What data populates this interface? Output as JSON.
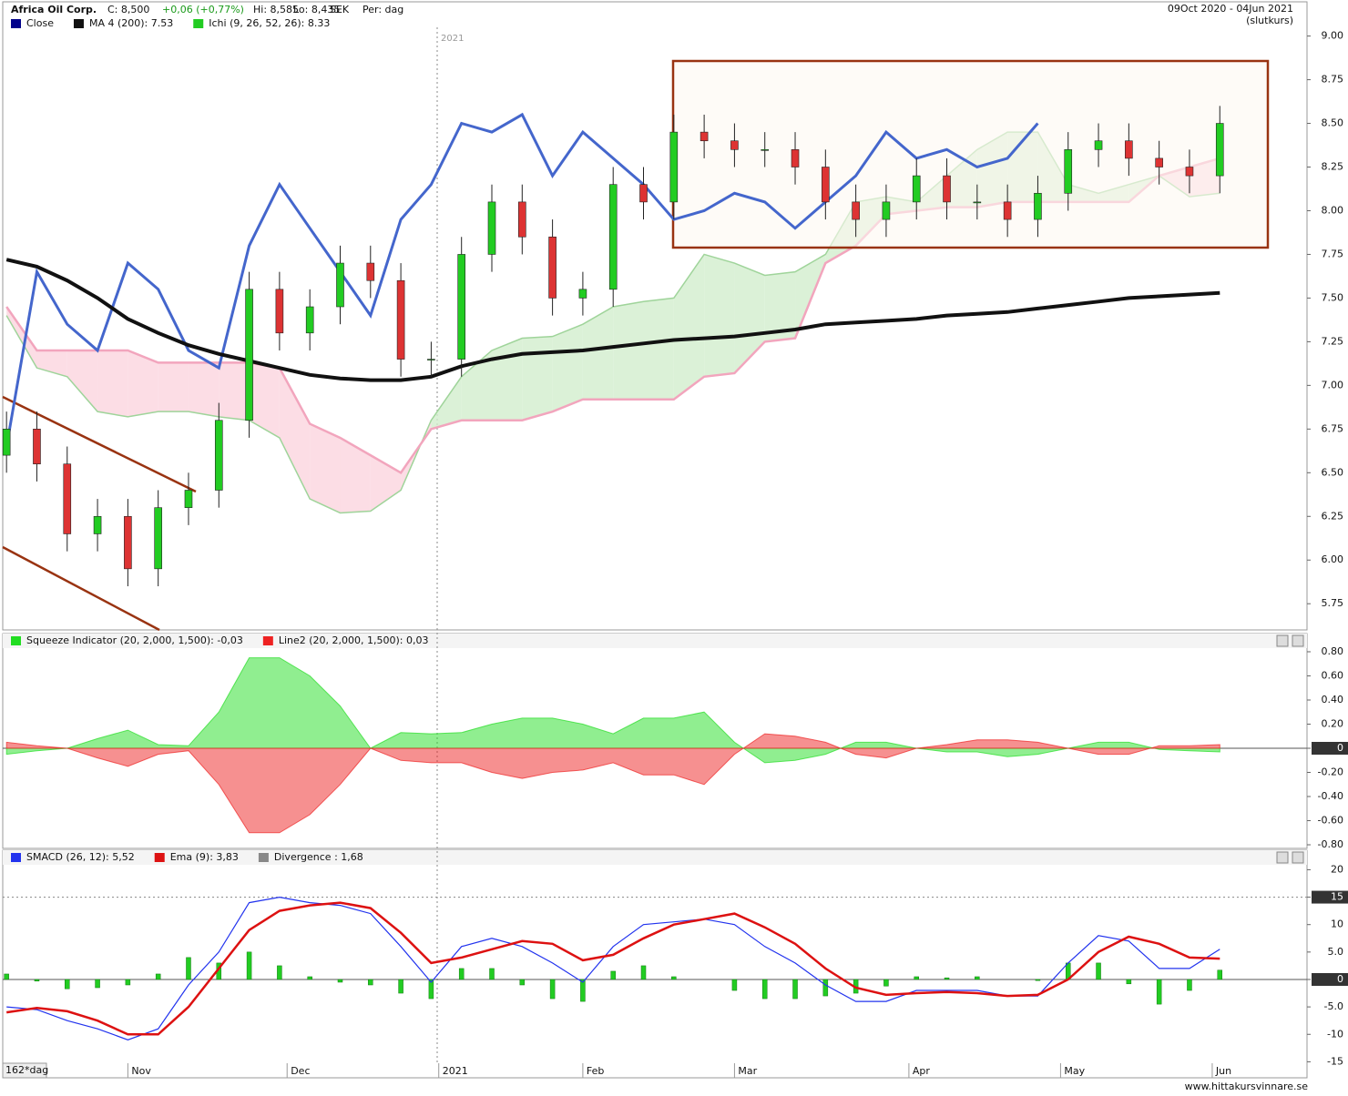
{
  "header": {
    "title": "Africa Oil Corp.",
    "close": "C: 8,500",
    "change": "+0,06 (+0,77%)",
    "high": "Hi: 8,585",
    "low": "Lo: 8,435",
    "currency": "SEK",
    "period": "Per: dag",
    "range": "09Oct 2020 - 04Jun 2021",
    "note": "(slutkurs)",
    "year_marker": "2021",
    "days": "162*dag",
    "footer": "www.hittakursvinnare.se"
  },
  "chart_data": [
    {
      "type": "candlestick",
      "up_color": "#22cc22",
      "down_color": "#dd3333",
      "cloud_colors": [
        "#d2eecd",
        "#fbd5df"
      ],
      "x": [
        0,
        4,
        8,
        12,
        16,
        20,
        24,
        28,
        32,
        36,
        40,
        44,
        48,
        52,
        56,
        60,
        64,
        68,
        72,
        76,
        80,
        84,
        88,
        92,
        96,
        100,
        104,
        108,
        112,
        116,
        120,
        124,
        128,
        132,
        136,
        140,
        144,
        148,
        152,
        156,
        160
      ],
      "xlim": [
        -0.5,
        171.5
      ],
      "open": [
        6.6,
        6.75,
        6.55,
        6.15,
        6.25,
        5.95,
        6.3,
        6.4,
        6.8,
        7.55,
        7.3,
        7.45,
        7.7,
        7.6,
        7.15,
        7.15,
        7.75,
        8.05,
        7.85,
        7.5,
        7.55,
        8.15,
        8.05,
        8.45,
        8.4,
        8.35,
        8.35,
        8.25,
        8.05,
        7.95,
        8.05,
        8.2,
        8.05,
        8.05,
        7.95,
        8.1,
        8.35,
        8.4,
        8.3,
        8.25,
        8.2
      ],
      "high": [
        6.85,
        6.85,
        6.65,
        6.35,
        6.35,
        6.4,
        6.5,
        6.9,
        7.65,
        7.65,
        7.55,
        7.8,
        7.8,
        7.7,
        7.25,
        7.85,
        8.15,
        8.15,
        7.95,
        7.65,
        8.25,
        8.25,
        8.55,
        8.55,
        8.5,
        8.45,
        8.45,
        8.35,
        8.15,
        8.15,
        8.3,
        8.3,
        8.15,
        8.15,
        8.2,
        8.45,
        8.5,
        8.5,
        8.4,
        8.35,
        8.6
      ],
      "low": [
        6.5,
        6.45,
        6.05,
        6.05,
        5.85,
        5.85,
        6.2,
        6.3,
        6.7,
        7.2,
        7.2,
        7.35,
        7.5,
        7.05,
        7.05,
        7.05,
        7.65,
        7.75,
        7.4,
        7.4,
        7.45,
        7.95,
        7.95,
        8.3,
        8.25,
        8.25,
        8.15,
        7.95,
        7.85,
        7.85,
        7.95,
        7.95,
        7.95,
        7.85,
        7.85,
        8.0,
        8.25,
        8.2,
        8.15,
        8.1,
        8.1
      ],
      "close": [
        6.75,
        6.55,
        6.15,
        6.25,
        5.95,
        6.3,
        6.4,
        6.8,
        7.55,
        7.3,
        7.45,
        7.7,
        7.6,
        7.15,
        7.15,
        7.75,
        8.05,
        7.85,
        7.5,
        7.55,
        8.15,
        8.05,
        8.45,
        8.4,
        8.35,
        8.35,
        8.25,
        8.05,
        7.95,
        8.05,
        8.2,
        8.05,
        8.05,
        7.95,
        8.1,
        8.35,
        8.4,
        8.3,
        8.25,
        8.2,
        8.5
      ],
      "series": [
        {
          "name": "Close",
          "color": "#4466cc",
          "legend_color": "#00008b",
          "values": [
            6.65,
            7.65,
            7.35,
            7.2,
            7.7,
            7.55,
            7.2,
            7.1,
            7.8,
            8.15,
            7.9,
            7.65,
            7.4,
            7.95,
            8.15,
            8.5,
            8.45,
            8.55,
            8.2,
            8.45,
            8.3,
            8.15,
            7.95,
            8.0,
            8.1,
            8.05,
            7.9,
            8.05,
            8.2,
            8.45,
            8.3,
            8.35,
            8.25,
            8.3,
            8.5,
            null,
            null,
            null,
            null,
            null,
            null
          ]
        },
        {
          "name": "MA 4 (200): 7.53",
          "color": "#111111",
          "values": [
            7.72,
            7.68,
            7.6,
            7.5,
            7.38,
            7.3,
            7.23,
            7.18,
            7.14,
            7.1,
            7.06,
            7.04,
            7.03,
            7.03,
            7.05,
            7.11,
            7.15,
            7.18,
            7.19,
            7.2,
            7.22,
            7.24,
            7.26,
            7.27,
            7.28,
            7.3,
            7.32,
            7.35,
            7.36,
            7.37,
            7.38,
            7.4,
            7.41,
            7.42,
            7.44,
            7.46,
            7.48,
            7.5,
            7.51,
            7.52,
            7.53
          ]
        },
        {
          "name": "Ichi (9, 26, 52, 26): 8.33",
          "color": "#22cc22",
          "span_a": [
            7.4,
            7.1,
            7.05,
            6.85,
            6.82,
            6.85,
            6.85,
            6.82,
            6.8,
            6.7,
            6.35,
            6.27,
            6.28,
            6.4,
            6.8,
            7.05,
            7.2,
            7.27,
            7.28,
            7.35,
            7.45,
            7.48,
            7.5,
            7.75,
            7.7,
            7.63,
            7.65,
            7.75,
            8.05,
            8.08,
            8.05,
            8.2,
            8.35,
            8.45,
            8.45,
            8.15,
            8.1,
            8.15,
            8.2,
            8.08,
            8.1
          ],
          "span_b": [
            7.45,
            7.2,
            7.2,
            7.2,
            7.2,
            7.13,
            7.13,
            7.13,
            7.13,
            7.1,
            6.78,
            6.7,
            6.6,
            6.5,
            6.75,
            6.8,
            6.8,
            6.8,
            6.85,
            6.92,
            6.92,
            6.92,
            6.92,
            7.05,
            7.07,
            7.25,
            7.27,
            7.7,
            7.8,
            7.98,
            8.0,
            8.02,
            8.02,
            8.05,
            8.05,
            8.05,
            8.05,
            8.05,
            8.2,
            8.25,
            8.3
          ]
        }
      ],
      "ylim": [
        5.6,
        9.05
      ],
      "yticks": [
        {
          "value": 9,
          "label": "9.00"
        },
        {
          "value": 8.75,
          "label": "8.75"
        },
        {
          "value": 8.5,
          "label": "8.50"
        },
        {
          "value": 8.25,
          "label": "8.25"
        },
        {
          "value": 8,
          "label": "8.00"
        },
        {
          "value": 7.75,
          "label": "7.75"
        },
        {
          "value": 7.5,
          "label": "7.50"
        },
        {
          "value": 7.25,
          "label": "7.25"
        },
        {
          "value": 7,
          "label": "7.00"
        },
        {
          "value": 6.75,
          "label": "6.75"
        },
        {
          "value": 6.5,
          "label": "6.50"
        },
        {
          "value": 6.25,
          "label": "6.25"
        },
        {
          "value": 6,
          "label": "6.00"
        },
        {
          "value": 5.75,
          "label": "5.75"
        }
      ]
    },
    {
      "type": "area",
      "x": [
        0,
        4,
        8,
        12,
        16,
        20,
        24,
        28,
        32,
        36,
        40,
        44,
        48,
        52,
        56,
        60,
        64,
        68,
        72,
        76,
        80,
        84,
        88,
        92,
        96,
        100,
        104,
        108,
        112,
        116,
        120,
        124,
        128,
        132,
        136,
        140,
        144,
        148,
        152,
        156,
        160
      ],
      "xlim": [
        -0.5,
        171.5
      ],
      "series": [
        {
          "name": "Squeeze Indicator (20, 2,000, 1,500): -0,03",
          "color": "#22dd22",
          "values": [
            -0.05,
            -0.02,
            0.0,
            0.08,
            0.15,
            0.03,
            0.02,
            0.3,
            0.75,
            0.75,
            0.6,
            0.35,
            0.0,
            0.13,
            0.12,
            0.13,
            0.2,
            0.25,
            0.25,
            0.2,
            0.12,
            0.25,
            0.25,
            0.3,
            0.05,
            -0.12,
            -0.1,
            -0.05,
            0.05,
            0.05,
            0.0,
            -0.03,
            -0.03,
            -0.07,
            -0.05,
            0.0,
            0.05,
            0.05,
            -0.01,
            -0.02,
            -0.03
          ]
        },
        {
          "name": "Line2 (20, 2,000, 1,500): 0,03",
          "color": "#ee2222",
          "values": [
            0.05,
            0.02,
            0.0,
            -0.08,
            -0.15,
            -0.05,
            -0.02,
            -0.3,
            -0.7,
            -0.7,
            -0.55,
            -0.3,
            0.0,
            -0.1,
            -0.12,
            -0.12,
            -0.2,
            -0.25,
            -0.2,
            -0.18,
            -0.12,
            -0.22,
            -0.22,
            -0.3,
            -0.05,
            0.12,
            0.1,
            0.05,
            -0.05,
            -0.08,
            0.0,
            0.03,
            0.07,
            0.07,
            0.05,
            0.0,
            -0.05,
            -0.05,
            0.02,
            0.02,
            0.03
          ]
        }
      ],
      "hlines": [
        0
      ],
      "ylim": [
        -0.83,
        0.83
      ],
      "yticks": [
        {
          "value": 0.8,
          "label": "0.80"
        },
        {
          "value": 0.6,
          "label": "0.60"
        },
        {
          "value": 0.4,
          "label": "0.40"
        },
        {
          "value": 0.2,
          "label": "0.20"
        },
        0,
        {
          "value": -0.2,
          "label": "-0.20"
        },
        {
          "value": -0.4,
          "label": "-0.40"
        },
        {
          "value": -0.6,
          "label": "-0.60"
        },
        {
          "value": -0.8,
          "label": "-0.80"
        }
      ]
    },
    {
      "type": "line",
      "x": [
        0,
        4,
        8,
        12,
        16,
        20,
        24,
        28,
        32,
        36,
        40,
        44,
        48,
        52,
        56,
        60,
        64,
        68,
        72,
        76,
        80,
        84,
        88,
        92,
        96,
        100,
        104,
        108,
        112,
        116,
        120,
        124,
        128,
        132,
        136,
        140,
        144,
        148,
        152,
        156,
        160
      ],
      "xlim": [
        -0.5,
        171.5
      ],
      "series": [
        {
          "name": "SMACD (26, 12): 5,52",
          "color": "#2233ee",
          "values": [
            -5,
            -5.5,
            -7.5,
            -9,
            -11,
            -9,
            -1,
            5,
            14,
            15,
            14,
            13.5,
            12,
            6,
            -0.5,
            6,
            7.5,
            6,
            3,
            -0.5,
            6,
            10,
            10.5,
            11,
            10,
            6,
            3,
            -1,
            -4,
            -4,
            -2,
            -2,
            -2,
            -3,
            -3,
            3,
            8,
            7,
            2,
            2,
            5.5
          ]
        },
        {
          "name": "Ema (9): 3,83",
          "color": "#dd1111",
          "values": [
            -6,
            -5.2,
            -5.8,
            -7.5,
            -10,
            -10,
            -5,
            2,
            9,
            12.5,
            13.5,
            14,
            13,
            8.5,
            3,
            4,
            5.5,
            7,
            6.5,
            3.5,
            4.5,
            7.5,
            10,
            11,
            12,
            9.5,
            6.5,
            2,
            -1.5,
            -2.8,
            -2.5,
            -2.3,
            -2.5,
            -3,
            -2.8,
            0,
            5,
            7.8,
            6.5,
            4,
            3.8
          ]
        },
        {
          "name": "Divergence : 1,68",
          "color": "#22cc22",
          "legend_color": "#888888",
          "kind": "bar",
          "values": [
            1,
            -0.3,
            -1.7,
            -1.5,
            -1,
            1,
            4,
            3,
            5,
            2.5,
            0.5,
            -0.5,
            -1,
            -2.5,
            -3.5,
            2,
            2,
            -1,
            -3.5,
            -4,
            1.5,
            2.5,
            0.5,
            0,
            -2,
            -3.5,
            -3.5,
            -3,
            -2.5,
            -1.2,
            0.5,
            0.3,
            0.5,
            0,
            -0.2,
            3,
            3,
            -0.8,
            -4.5,
            -2,
            1.7
          ]
        }
      ],
      "hlines": [
        15,
        0
      ],
      "ylim": [
        -15.1,
        20.9
      ],
      "yticks": [
        20,
        15,
        10,
        {
          "value": 5,
          "label": "5.0"
        },
        0,
        {
          "value": -5,
          "label": "-5.0"
        },
        -10,
        -15
      ],
      "xticks": [
        {
          "value": 16,
          "label": "Nov"
        },
        {
          "value": 37,
          "label": "Dec"
        },
        {
          "value": 57,
          "label": "2021"
        },
        {
          "value": 76,
          "label": "Feb"
        },
        {
          "value": 96,
          "label": "Mar"
        },
        {
          "value": 119,
          "label": "Apr"
        },
        {
          "value": 139,
          "label": "May"
        },
        {
          "value": 159,
          "label": "Jun"
        }
      ]
    }
  ]
}
